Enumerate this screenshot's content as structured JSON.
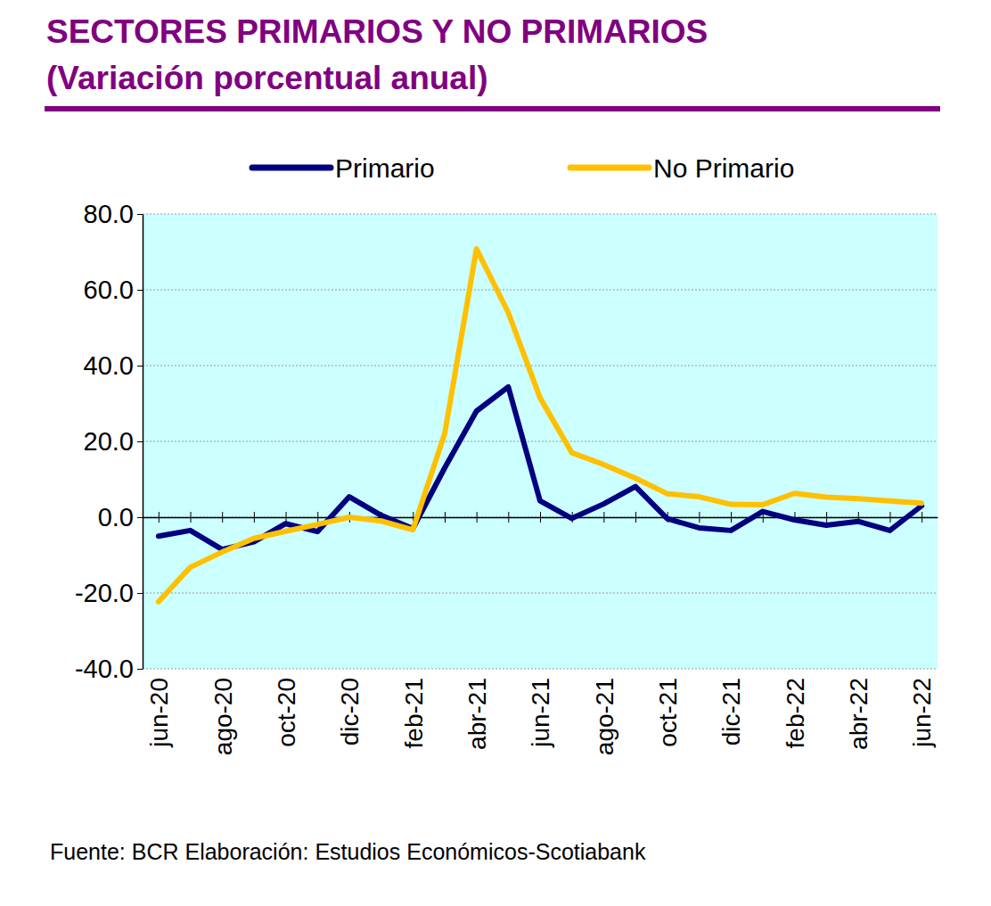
{
  "chart_data": {
    "type": "line",
    "title": "SECTORES PRIMARIOS Y NO PRIMARIOS",
    "subtitle": "(Variación porcentual anual)",
    "source": "Fuente: BCR  Elaboración: Estudios Económicos-Scotiabank",
    "categories": [
      "jun-20",
      null,
      "ago-20",
      null,
      "oct-20",
      null,
      "dic-20",
      null,
      "feb-21",
      null,
      "abr-21",
      null,
      "jun-21",
      null,
      "ago-21",
      null,
      "oct-21",
      null,
      "dic-21",
      null,
      "feb-22",
      null,
      "abr-22",
      null,
      "jun-22"
    ],
    "series": [
      {
        "name": "Primario",
        "color": "#000080",
        "values": [
          -5.0,
          -3.5,
          -8.5,
          -6.5,
          -1.7,
          -3.8,
          5.4,
          0.5,
          -3.0,
          13.0,
          28.0,
          34.4,
          4.3,
          -0.3,
          3.5,
          8.1,
          -0.4,
          -2.8,
          -3.5,
          1.5,
          -0.7,
          -2.1,
          -1.1,
          -3.5,
          3.0
        ]
      },
      {
        "name": "No Primario",
        "color": "#FFC000",
        "values": [
          -22.3,
          -13.2,
          -9.2,
          -5.6,
          -3.7,
          -1.9,
          0.0,
          -1.0,
          -3.3,
          22.0,
          70.8,
          54.0,
          31.5,
          17.0,
          13.9,
          10.3,
          6.2,
          5.4,
          3.4,
          3.3,
          6.3,
          5.3,
          4.9,
          4.3,
          3.7
        ]
      }
    ],
    "ylim": [
      -40,
      80
    ],
    "yticks": [
      {
        "value": -40,
        "label": "-40.0"
      },
      {
        "value": -20,
        "label": "-20.0"
      },
      {
        "value": 0,
        "label": "0.0"
      },
      {
        "value": 20,
        "label": "20.0"
      },
      {
        "value": 40,
        "label": "40.0"
      },
      {
        "value": 60,
        "label": "60.0"
      },
      {
        "value": 80,
        "label": "80.0"
      }
    ],
    "grid": true,
    "legend": "top"
  }
}
